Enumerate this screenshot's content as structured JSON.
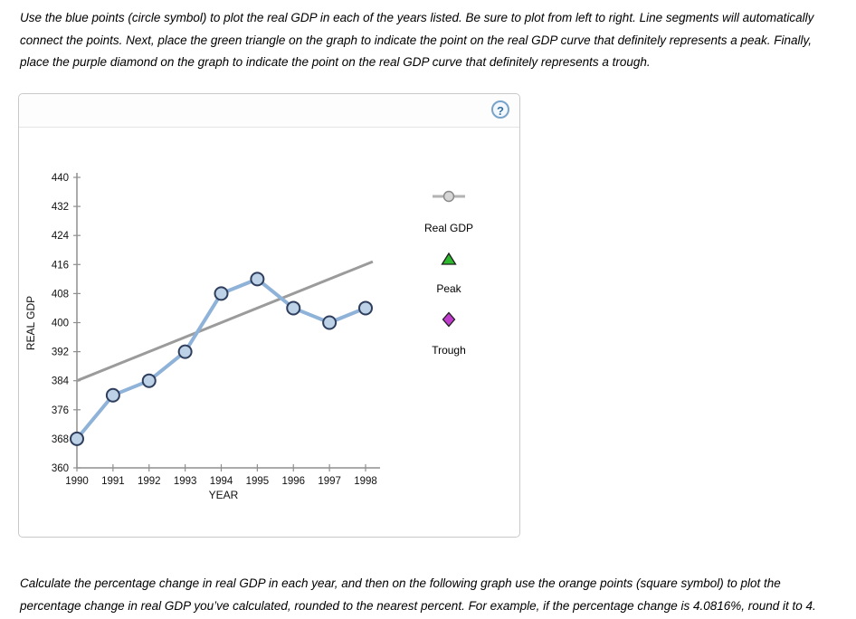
{
  "instructions_top": "Use the blue points (circle symbol) to plot the real GDP in each of the years listed. Be sure to plot from left to right. Line segments will automatically connect the points. Next, place the green triangle on the graph to indicate the point on the real GDP curve that definitely represents a peak. Finally, place the purple diamond on the graph to indicate the point on the real GDP curve that definitely represents a trough.",
  "instructions_bottom": "Calculate the percentage change in real GDP in each year, and then on the following graph use the orange points (square symbol) to plot the percentage change in real GDP you’ve calculated, rounded to the nearest percent. For example, if the percentage change is 4.0816%, round it to 4.",
  "panel": {
    "help_label": "?"
  },
  "chart_data": {
    "type": "line",
    "title": "",
    "xlabel": "YEAR",
    "ylabel": "REAL GDP",
    "x": [
      1990,
      1991,
      1992,
      1993,
      1994,
      1995,
      1996,
      1997,
      1998
    ],
    "ylim": [
      360,
      440
    ],
    "yticks": [
      360,
      368,
      376,
      384,
      392,
      400,
      408,
      416,
      424,
      432,
      440
    ],
    "grid": false,
    "series": [
      {
        "name": "Real GDP",
        "symbol": "circle",
        "line_color": "#8fb2d9",
        "point_fill": "#bdd1e7",
        "point_stroke": "#2e3e5c",
        "values": [
          368,
          380,
          384,
          392,
          408,
          412,
          404,
          400,
          404
        ]
      }
    ],
    "trend_line": {
      "color": "#9b9b9b",
      "from": {
        "x": 1990,
        "y": 384
      },
      "to": {
        "x": 1998.2,
        "y": 416.8
      }
    },
    "legend": {
      "position": "right",
      "items": [
        {
          "label": "Real GDP",
          "symbol": "slider-handle-circle",
          "color": "#d6d6d6"
        },
        {
          "label": "Peak",
          "symbol": "triangle",
          "color": "#2eb82e"
        },
        {
          "label": "Trough",
          "symbol": "diamond",
          "color": "#c03ccc"
        }
      ]
    }
  }
}
